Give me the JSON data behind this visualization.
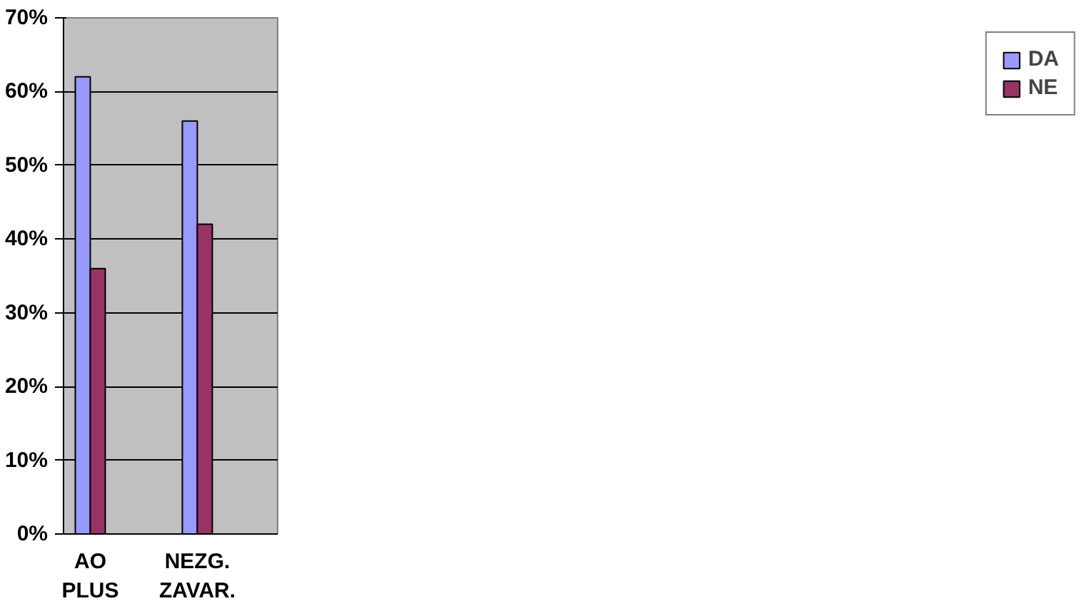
{
  "chart_data": {
    "type": "bar",
    "categories": [
      "AO PLUS",
      null,
      "NEZG. ZAVAR.",
      null
    ],
    "series": [
      {
        "name": "DA",
        "color": "#9999ff",
        "values": [
          62,
          null,
          56,
          null
        ]
      },
      {
        "name": "NE",
        "color": "#993366",
        "values": [
          36,
          null,
          42,
          null
        ]
      }
    ],
    "ylim": [
      0,
      70
    ],
    "yticks": [
      {
        "value": 0,
        "label": "0%"
      },
      {
        "value": 10,
        "label": "10%"
      },
      {
        "value": 20,
        "label": "20%"
      },
      {
        "value": 30,
        "label": "30%"
      },
      {
        "value": 40,
        "label": "40%"
      },
      {
        "value": 50,
        "label": "50%"
      },
      {
        "value": 60,
        "label": "60%"
      },
      {
        "value": 70,
        "label": "70%"
      }
    ],
    "grid": "y",
    "legend": "right"
  }
}
